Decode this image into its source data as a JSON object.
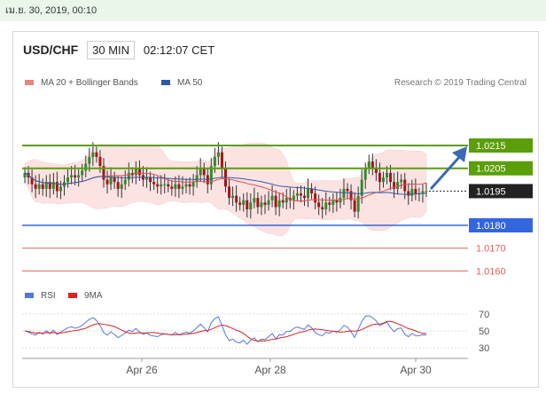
{
  "datetime": "เม.ย. 30, 2019, 00:10",
  "header": {
    "pair": "USD/CHF",
    "timeframe": "30 MIN",
    "time": "02:12:07 CET"
  },
  "legend": {
    "ma_bb": "MA 20 + Bollinger Bands",
    "ma50": "MA 50"
  },
  "credit": "Research © 2019 Trading Central",
  "colors": {
    "resistance": "#5a9e0a",
    "support": "#3366dd",
    "secondary": "#e06060",
    "current": "#222222",
    "arrow": "#3a6bb0",
    "bb_fill": "#fde2e2",
    "rsi": "#5577dd",
    "rsi_ma": "#dd2222"
  },
  "chart_data": [
    {
      "type": "candlestick",
      "title": "USD/CHF",
      "levels": [
        {
          "value": 1.0215,
          "label": "1.0215",
          "kind": "resistance"
        },
        {
          "value": 1.0205,
          "label": "1.0205",
          "kind": "resistance"
        },
        {
          "value": 1.0195,
          "label": "1.0195",
          "kind": "current"
        },
        {
          "value": 1.018,
          "label": "1.0180",
          "kind": "support"
        },
        {
          "value": 1.017,
          "label": "1.0170",
          "kind": "support_minor"
        },
        {
          "value": 1.016,
          "label": "1.0160",
          "kind": "support_minor"
        }
      ],
      "x_labels": [
        "Apr 26",
        "Apr 28",
        "Apr 30"
      ],
      "close": [
        1.0203,
        1.0201,
        1.0198,
        1.0196,
        1.0198,
        1.0196,
        1.0199,
        1.0196,
        1.0199,
        1.0195,
        1.0197,
        1.0199,
        1.0201,
        1.0202,
        1.0201,
        1.0202,
        1.0204,
        1.0207,
        1.021,
        1.0212,
        1.021,
        1.0206,
        1.02,
        1.0198,
        1.0201,
        1.0199,
        1.0196,
        1.0198,
        1.02,
        1.0203,
        1.0202,
        1.0205,
        1.0202,
        1.02,
        1.0201,
        1.0199,
        1.0198,
        1.0197,
        1.0198,
        1.0198,
        1.0197,
        1.0196,
        1.0198,
        1.0196,
        1.0197,
        1.0198,
        1.0197,
        1.0199,
        1.0202,
        1.0205,
        1.0202,
        1.0198,
        1.0206,
        1.021,
        1.0212,
        1.0205,
        1.0197,
        1.0192,
        1.0193,
        1.019,
        1.0189,
        1.0191,
        1.0187,
        1.019,
        1.0192,
        1.0188,
        1.019,
        1.0189,
        1.0191,
        1.0193,
        1.0188,
        1.0191,
        1.019,
        1.0192,
        1.0191,
        1.0193,
        1.0194,
        1.0193,
        1.0192,
        1.0196,
        1.0194,
        1.019,
        1.0188,
        1.0187,
        1.019,
        1.0189,
        1.0191,
        1.019,
        1.0192,
        1.0196,
        1.0195,
        1.0191,
        1.0186,
        1.0193,
        1.02,
        1.0205,
        1.0208,
        1.0205,
        1.0203,
        1.0199,
        1.0201,
        1.0203,
        1.0199,
        1.0196,
        1.0199,
        1.02,
        1.0195,
        1.0193,
        1.0196,
        1.0194,
        1.0194,
        1.0195,
        1.0195
      ],
      "rsi_axis": [
        "70",
        "50",
        "30"
      ],
      "rsi_legend": {
        "rsi": "RSI",
        "ma": "9MA"
      }
    }
  ]
}
